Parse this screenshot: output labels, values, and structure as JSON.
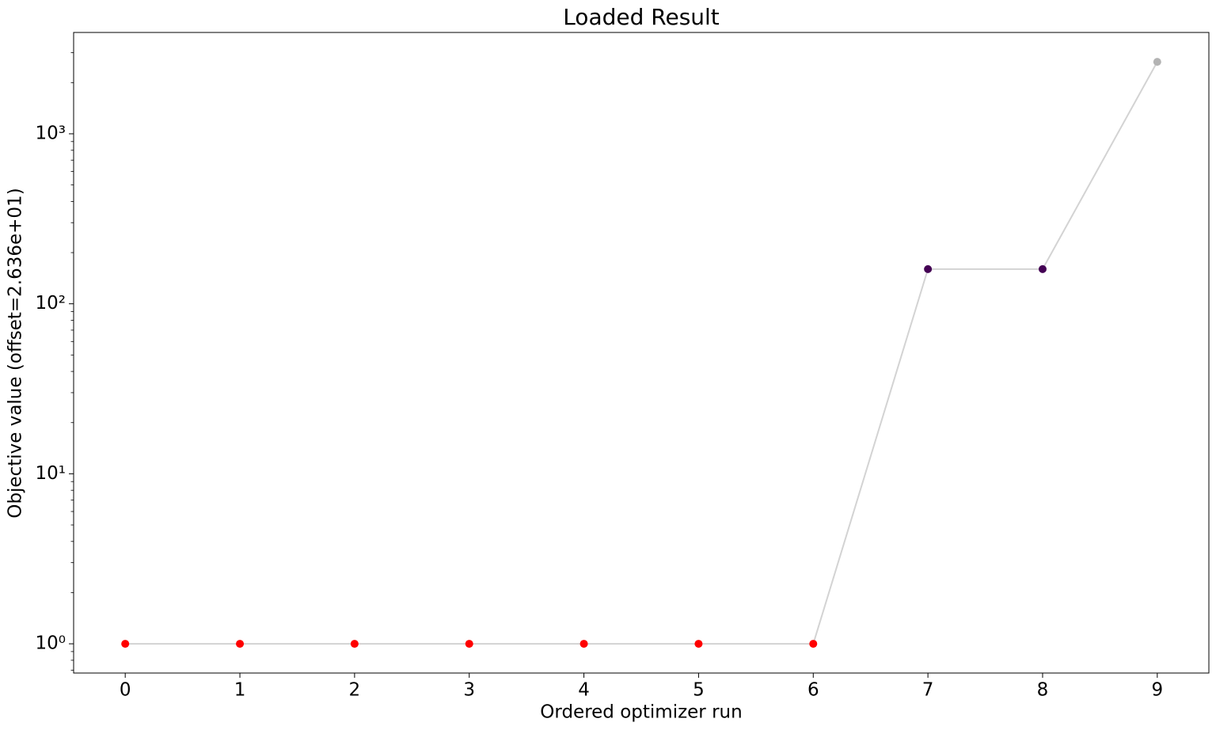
{
  "chart_data": {
    "type": "line",
    "title": "Loaded Result",
    "x_label": "Ordered optimizer run",
    "y_label": "Objective value (offset=2.636e+01)",
    "x": [
      0,
      1,
      2,
      3,
      4,
      5,
      6,
      7,
      8,
      9
    ],
    "series": [
      {
        "values": [
          1,
          1,
          1,
          1,
          1,
          1,
          1,
          160,
          160,
          2650
        ],
        "line_color": "#d3d3d3",
        "point_colors": [
          "#ff0000",
          "#ff0000",
          "#ff0000",
          "#ff0000",
          "#ff0000",
          "#ff0000",
          "#ff0000",
          "#440154",
          "#440154",
          "#b3b3b3"
        ]
      }
    ],
    "xlim": [
      -0.45,
      9.45
    ],
    "xticks": [
      0,
      1,
      2,
      3,
      4,
      5,
      6,
      7,
      8,
      9
    ],
    "ylim": [
      0.673,
      3945
    ],
    "y_scale": "log",
    "yticks": [
      {
        "value": 1,
        "label": "10⁰"
      },
      {
        "value": 10,
        "label": "10¹"
      },
      {
        "value": 100,
        "label": "10²"
      },
      {
        "value": 1000,
        "label": "10³"
      }
    ]
  }
}
